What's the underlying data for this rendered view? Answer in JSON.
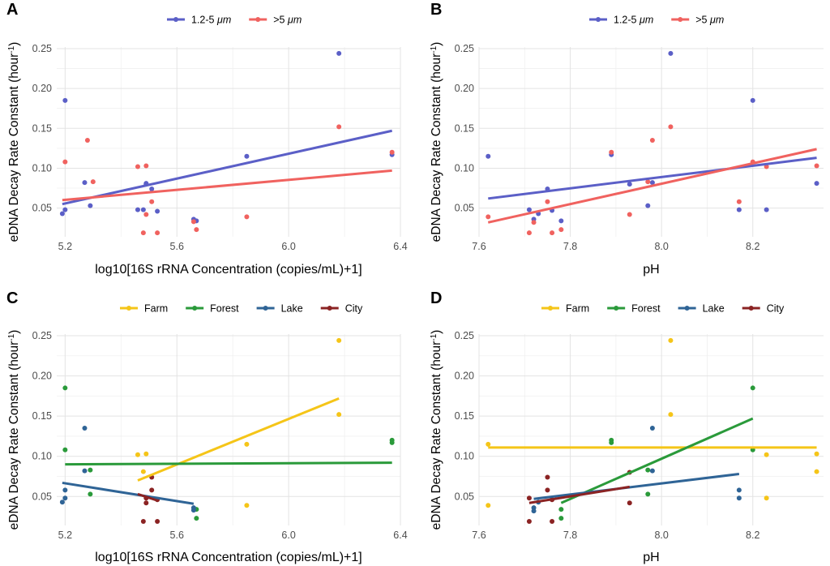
{
  "chart_data": [
    {
      "panel": "A",
      "type": "scatter",
      "ylabel": "eDNA Decay Rate Constant (hour",
      "ylabel_sup": "-1",
      "ylabel_close": ")",
      "xlabel": "log10[16S rRNA Concentration (copies/mL)+1]",
      "xlim": [
        5.17,
        6.4
      ],
      "ylim": [
        0.014,
        0.252
      ],
      "xticks": [
        5.2,
        5.6,
        6.0,
        6.4
      ],
      "xtick_labels": [
        "5.2",
        "5.6",
        "6.0",
        "6.4"
      ],
      "yticks": [
        0.05,
        0.1,
        0.15,
        0.2,
        0.25
      ],
      "ytick_labels": [
        "0.05",
        "0.10",
        "0.15",
        "0.20",
        "0.25"
      ],
      "grid": true,
      "legend_position": "top",
      "series": [
        {
          "name": "1.2-5 μm",
          "legend_parts": [
            "1.2-5 ",
            "μm"
          ],
          "color": "#5b5fc7",
          "points": [
            [
              5.19,
              0.043
            ],
            [
              5.2,
              0.185
            ],
            [
              5.2,
              0.048
            ],
            [
              5.27,
              0.082
            ],
            [
              5.29,
              0.053
            ],
            [
              5.46,
              0.048
            ],
            [
              5.48,
              0.048
            ],
            [
              5.49,
              0.08
            ],
            [
              5.49,
              0.081
            ],
            [
              5.51,
              0.074
            ],
            [
              5.53,
              0.046
            ],
            [
              5.66,
              0.036
            ],
            [
              5.67,
              0.034
            ],
            [
              5.85,
              0.115
            ],
            [
              6.18,
              0.244
            ],
            [
              6.37,
              0.117
            ]
          ],
          "fit": [
            [
              5.19,
              0.055
            ],
            [
              6.37,
              0.147
            ]
          ]
        },
        {
          "name": ">5 μm",
          "legend_parts": [
            ">5 ",
            "μm"
          ],
          "color": "#f0625f",
          "points": [
            [
              5.2,
              0.108
            ],
            [
              5.28,
              0.135
            ],
            [
              5.3,
              0.083
            ],
            [
              5.46,
              0.102
            ],
            [
              5.48,
              0.019
            ],
            [
              5.49,
              0.042
            ],
            [
              5.49,
              0.103
            ],
            [
              5.51,
              0.058
            ],
            [
              5.53,
              0.019
            ],
            [
              5.66,
              0.033
            ],
            [
              5.67,
              0.023
            ],
            [
              5.85,
              0.039
            ],
            [
              6.18,
              0.152
            ],
            [
              6.37,
              0.12
            ]
          ],
          "fit": [
            [
              5.19,
              0.06
            ],
            [
              6.37,
              0.097
            ]
          ]
        }
      ]
    },
    {
      "panel": "B",
      "type": "scatter",
      "ylabel": "eDNA Decay Rate Constant (hour",
      "ylabel_sup": "-1",
      "ylabel_close": ")",
      "xlabel": "pH",
      "xlim": [
        7.6,
        8.355
      ],
      "ylim": [
        0.014,
        0.252
      ],
      "xticks": [
        7.6,
        7.8,
        8.0,
        8.2
      ],
      "xtick_labels": [
        "7.6",
        "7.8",
        "8.0",
        "8.2"
      ],
      "yticks": [
        0.05,
        0.1,
        0.15,
        0.2,
        0.25
      ],
      "ytick_labels": [
        "0.05",
        "0.10",
        "0.15",
        "0.20",
        "0.25"
      ],
      "grid": true,
      "legend_position": "top",
      "series": [
        {
          "name": "1.2-5 μm",
          "legend_parts": [
            "1.2-5 ",
            "μm"
          ],
          "color": "#5b5fc7",
          "points": [
            [
              7.62,
              0.115
            ],
            [
              7.71,
              0.048
            ],
            [
              7.72,
              0.036
            ],
            [
              7.73,
              0.043
            ],
            [
              7.75,
              0.074
            ],
            [
              7.76,
              0.047
            ],
            [
              7.78,
              0.034
            ],
            [
              7.89,
              0.117
            ],
            [
              7.93,
              0.08
            ],
            [
              7.97,
              0.053
            ],
            [
              7.98,
              0.082
            ],
            [
              8.02,
              0.244
            ],
            [
              8.17,
              0.048
            ],
            [
              8.2,
              0.185
            ],
            [
              8.23,
              0.048
            ],
            [
              8.34,
              0.081
            ]
          ],
          "fit": [
            [
              7.62,
              0.062
            ],
            [
              8.34,
              0.113
            ]
          ]
        },
        {
          "name": ">5 μm",
          "legend_parts": [
            ">5 ",
            "μm"
          ],
          "color": "#f0625f",
          "points": [
            [
              7.62,
              0.039
            ],
            [
              7.71,
              0.019
            ],
            [
              7.72,
              0.032
            ],
            [
              7.75,
              0.058
            ],
            [
              7.76,
              0.019
            ],
            [
              7.78,
              0.023
            ],
            [
              7.89,
              0.12
            ],
            [
              7.93,
              0.042
            ],
            [
              7.97,
              0.083
            ],
            [
              7.98,
              0.135
            ],
            [
              8.02,
              0.152
            ],
            [
              8.17,
              0.058
            ],
            [
              8.2,
              0.108
            ],
            [
              8.23,
              0.102
            ],
            [
              8.34,
              0.103
            ]
          ],
          "fit": [
            [
              7.62,
              0.032
            ],
            [
              8.34,
              0.124
            ]
          ]
        }
      ]
    },
    {
      "panel": "C",
      "type": "scatter",
      "ylabel": "eDNA Decay Rate Constant (hour",
      "ylabel_sup": "-1",
      "ylabel_close": ")",
      "xlabel": "log10[16S rRNA Concentration (copies/mL)+1]",
      "xlim": [
        5.17,
        6.4
      ],
      "ylim": [
        0.014,
        0.252
      ],
      "xticks": [
        5.2,
        5.6,
        6.0,
        6.4
      ],
      "xtick_labels": [
        "5.2",
        "5.6",
        "6.0",
        "6.4"
      ],
      "yticks": [
        0.05,
        0.1,
        0.15,
        0.2,
        0.25
      ],
      "ytick_labels": [
        "0.05",
        "0.10",
        "0.15",
        "0.20",
        "0.25"
      ],
      "grid": true,
      "legend_position": "top",
      "series": [
        {
          "name": "Farm",
          "legend_parts": [
            "Farm"
          ],
          "color": "#f5c518",
          "points": [
            [
              5.46,
              0.102
            ],
            [
              5.48,
              0.081
            ],
            [
              5.49,
              0.103
            ],
            [
              5.85,
              0.115
            ],
            [
              5.85,
              0.039
            ],
            [
              6.18,
              0.244
            ],
            [
              6.18,
              0.152
            ]
          ],
          "fit": [
            [
              5.46,
              0.07
            ],
            [
              6.18,
              0.172
            ]
          ]
        },
        {
          "name": "Forest",
          "legend_parts": [
            "Forest"
          ],
          "color": "#2a9a3a",
          "points": [
            [
              5.2,
              0.185
            ],
            [
              5.2,
              0.108
            ],
            [
              5.29,
              0.083
            ],
            [
              5.29,
              0.053
            ],
            [
              5.67,
              0.034
            ],
            [
              5.67,
              0.023
            ],
            [
              6.37,
              0.12
            ],
            [
              6.37,
              0.117
            ]
          ],
          "fit": [
            [
              5.2,
              0.09
            ],
            [
              6.37,
              0.092
            ]
          ]
        },
        {
          "name": "Lake",
          "legend_parts": [
            "Lake"
          ],
          "color": "#2f6496",
          "points": [
            [
              5.19,
              0.043
            ],
            [
              5.2,
              0.048
            ],
            [
              5.2,
              0.058
            ],
            [
              5.27,
              0.135
            ],
            [
              5.27,
              0.082
            ],
            [
              5.66,
              0.036
            ],
            [
              5.66,
              0.033
            ]
          ],
          "fit": [
            [
              5.19,
              0.067
            ],
            [
              5.66,
              0.041
            ]
          ]
        },
        {
          "name": "City",
          "legend_parts": [
            "City"
          ],
          "color": "#8b2323",
          "points": [
            [
              5.48,
              0.019
            ],
            [
              5.49,
              0.042
            ],
            [
              5.49,
              0.048
            ],
            [
              5.51,
              0.058
            ],
            [
              5.51,
              0.074
            ],
            [
              5.53,
              0.019
            ],
            [
              5.53,
              0.046
            ]
          ],
          "fit": [
            [
              5.46,
              0.053
            ],
            [
              5.53,
              0.045
            ]
          ]
        }
      ]
    },
    {
      "panel": "D",
      "type": "scatter",
      "ylabel": "eDNA Decay Rate Constant (hour",
      "ylabel_sup": "-1",
      "ylabel_close": ")",
      "xlabel": "pH",
      "xlim": [
        7.6,
        8.355
      ],
      "ylim": [
        0.014,
        0.252
      ],
      "xticks": [
        7.6,
        7.8,
        8.0,
        8.2
      ],
      "xtick_labels": [
        "7.6",
        "7.8",
        "8.0",
        "8.2"
      ],
      "yticks": [
        0.05,
        0.1,
        0.15,
        0.2,
        0.25
      ],
      "ytick_labels": [
        "0.05",
        "0.10",
        "0.15",
        "0.20",
        "0.25"
      ],
      "grid": true,
      "legend_position": "top",
      "series": [
        {
          "name": "Farm",
          "legend_parts": [
            "Farm"
          ],
          "color": "#f5c518",
          "points": [
            [
              7.62,
              0.115
            ],
            [
              7.62,
              0.039
            ],
            [
              8.02,
              0.244
            ],
            [
              8.02,
              0.152
            ],
            [
              8.23,
              0.102
            ],
            [
              8.23,
              0.048
            ],
            [
              8.34,
              0.103
            ],
            [
              8.34,
              0.081
            ]
          ],
          "fit": [
            [
              7.62,
              0.111
            ],
            [
              8.34,
              0.111
            ]
          ]
        },
        {
          "name": "Forest",
          "legend_parts": [
            "Forest"
          ],
          "color": "#2a9a3a",
          "points": [
            [
              7.78,
              0.034
            ],
            [
              7.78,
              0.023
            ],
            [
              7.89,
              0.12
            ],
            [
              7.89,
              0.117
            ],
            [
              7.97,
              0.083
            ],
            [
              7.97,
              0.053
            ],
            [
              8.2,
              0.185
            ],
            [
              8.2,
              0.108
            ]
          ],
          "fit": [
            [
              7.78,
              0.042
            ],
            [
              8.2,
              0.147
            ]
          ]
        },
        {
          "name": "Lake",
          "legend_parts": [
            "Lake"
          ],
          "color": "#2f6496",
          "points": [
            [
              7.72,
              0.036
            ],
            [
              7.72,
              0.032
            ],
            [
              7.73,
              0.043
            ],
            [
              7.98,
              0.135
            ],
            [
              7.98,
              0.082
            ],
            [
              8.17,
              0.058
            ],
            [
              8.17,
              0.048
            ]
          ],
          "fit": [
            [
              7.72,
              0.047
            ],
            [
              8.17,
              0.078
            ]
          ]
        },
        {
          "name": "City",
          "legend_parts": [
            "City"
          ],
          "color": "#8b2323",
          "points": [
            [
              7.71,
              0.048
            ],
            [
              7.71,
              0.019
            ],
            [
              7.75,
              0.074
            ],
            [
              7.75,
              0.058
            ],
            [
              7.76,
              0.046
            ],
            [
              7.76,
              0.019
            ],
            [
              7.93,
              0.08
            ],
            [
              7.93,
              0.042
            ]
          ],
          "fit": [
            [
              7.71,
              0.042
            ],
            [
              7.93,
              0.062
            ]
          ]
        }
      ]
    }
  ]
}
